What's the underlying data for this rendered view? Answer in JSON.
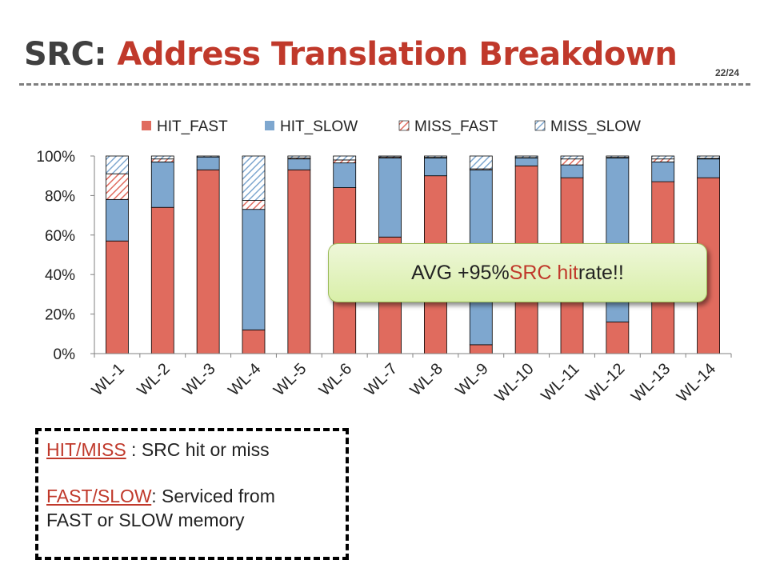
{
  "slide": {
    "title_prefix": "SRC: ",
    "title_main": "Address Translation Breakdown",
    "page_number": "22/24"
  },
  "chart_data": {
    "type": "bar",
    "stacked": true,
    "categories": [
      "WL-1",
      "WL-2",
      "WL-3",
      "WL-4",
      "WL-5",
      "WL-6",
      "WL-7",
      "WL-8",
      "WL-9",
      "WL-10",
      "WL-11",
      "WL-12",
      "WL-13",
      "WL-14"
    ],
    "series": [
      {
        "name": "HIT_FAST",
        "color": "#e06b5e",
        "pattern": "solid",
        "values": [
          57,
          74,
          93,
          12,
          93,
          84,
          59,
          90,
          4.5,
          95,
          89,
          16,
          87,
          89
        ]
      },
      {
        "name": "HIT_SLOW",
        "color": "#7ea7cf",
        "pattern": "solid",
        "values": [
          21,
          23,
          6.5,
          61,
          5.5,
          12.5,
          40,
          9,
          88.5,
          4,
          6.5,
          83,
          10,
          9.5
        ]
      },
      {
        "name": "MISS_FAST",
        "color": "#e06b5e",
        "pattern": "hatch",
        "values": [
          13,
          1.5,
          0,
          4.5,
          0.5,
          1.5,
          0.5,
          0.3,
          0.5,
          0.2,
          3,
          0.3,
          1.5,
          0.3
        ]
      },
      {
        "name": "MISS_SLOW",
        "color": "#7ea7cf",
        "pattern": "hatch",
        "values": [
          9,
          1.5,
          0.5,
          22.5,
          1,
          2,
          0.5,
          0.7,
          6.5,
          0.8,
          1.5,
          0.7,
          1.5,
          1.2
        ]
      }
    ],
    "ylim": [
      0,
      100
    ],
    "yticks": [
      "0%",
      "20%",
      "40%",
      "60%",
      "80%",
      "100%"
    ],
    "ytick_values": [
      0,
      20,
      40,
      60,
      80,
      100
    ],
    "legend_position": "top",
    "grid": false,
    "xlabel": "",
    "ylabel": ""
  },
  "callout": {
    "prefix": "AVG +95% ",
    "highlight": "SRC hit",
    "suffix": " rate!!"
  },
  "legend_box": {
    "line1_term": "HIT/MISS",
    "line1_text": " : SRC hit or miss",
    "line2_term": "FAST/SLOW",
    "line2_text": ": Serviced from",
    "line3_text": "FAST or SLOW memory"
  }
}
